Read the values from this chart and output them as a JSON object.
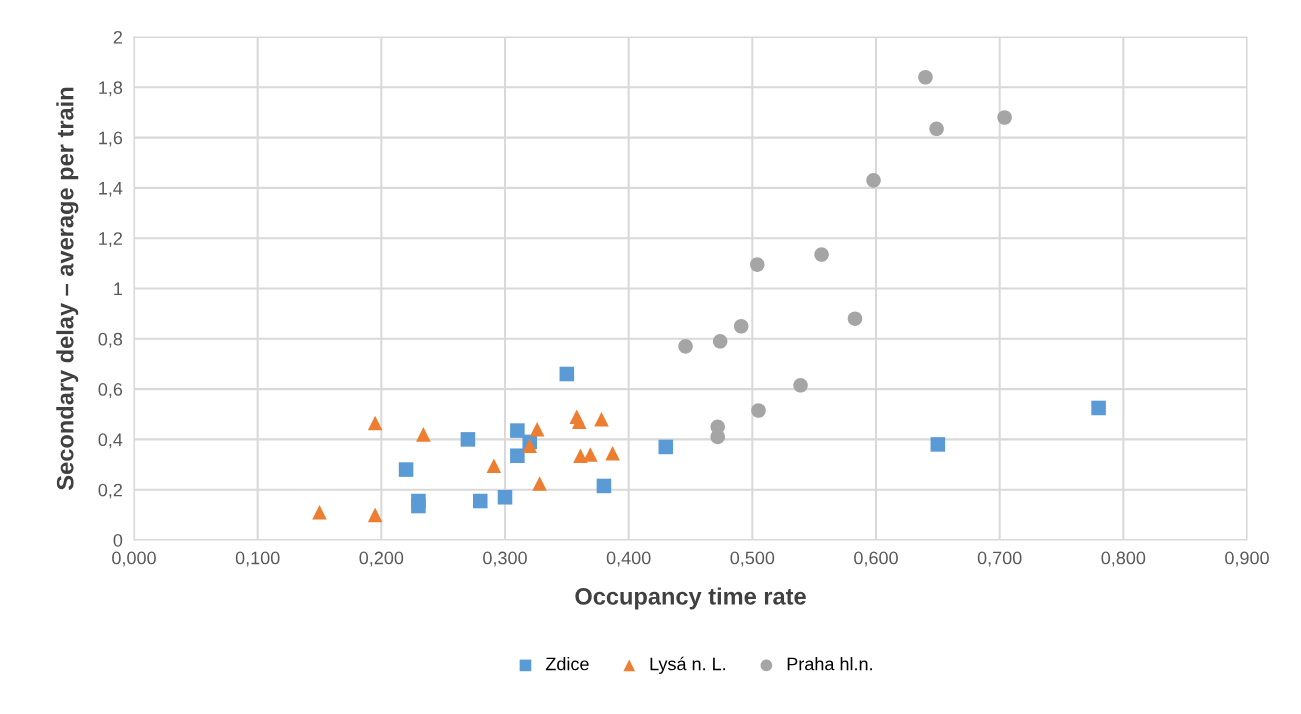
{
  "chart_data": {
    "type": "scatter",
    "xlabel": "Occupancy time rate",
    "ylabel": "Secondary delay – average per train",
    "xlim": [
      0,
      0.9
    ],
    "ylim": [
      0,
      2
    ],
    "xticks": [
      {
        "value": 0,
        "label": "0,000"
      },
      {
        "value": 0.1,
        "label": "0,100"
      },
      {
        "value": 0.2,
        "label": "0,200"
      },
      {
        "value": 0.3,
        "label": "0,300"
      },
      {
        "value": 0.4,
        "label": "0,400"
      },
      {
        "value": 0.5,
        "label": "0,500"
      },
      {
        "value": 0.6,
        "label": "0,600"
      },
      {
        "value": 0.7,
        "label": "0,700"
      },
      {
        "value": 0.8,
        "label": "0,800"
      },
      {
        "value": 0.9,
        "label": "0,900"
      }
    ],
    "yticks": [
      0,
      {
        "value": 0.2,
        "label": "0,2"
      },
      {
        "value": 0.4,
        "label": "0,4"
      },
      {
        "value": 0.6,
        "label": "0,6"
      },
      {
        "value": 0.8,
        "label": "0,8"
      },
      1,
      {
        "value": 1.2,
        "label": "1,2"
      },
      {
        "value": 1.4,
        "label": "1,4"
      },
      {
        "value": 1.6,
        "label": "1,6"
      },
      {
        "value": 1.8,
        "label": "1,8"
      },
      2
    ],
    "grid": true,
    "legend": "bottom",
    "series": [
      {
        "name": "Zdice",
        "color": "#5b9bd5",
        "marker": "square",
        "x": [
          0.22,
          0.23,
          0.23,
          0.27,
          0.28,
          0.3,
          0.31,
          0.31,
          0.32,
          0.35,
          0.38,
          0.43,
          0.65,
          0.78
        ],
        "values": [
          0.28,
          0.155,
          0.135,
          0.4,
          0.155,
          0.17,
          0.435,
          0.335,
          0.39,
          0.66,
          0.215,
          0.37,
          0.38,
          0.525
        ]
      },
      {
        "name": "Lysá n. L.",
        "color": "#ed7d31",
        "marker": "triangle",
        "x": [
          0.15,
          0.195,
          0.195,
          0.234,
          0.291,
          0.328,
          0.32,
          0.326,
          0.358,
          0.36,
          0.378,
          0.361,
          0.369,
          0.387
        ],
        "values": [
          0.11,
          0.1,
          0.465,
          0.42,
          0.295,
          0.225,
          0.375,
          0.44,
          0.49,
          0.47,
          0.48,
          0.335,
          0.34,
          0.345
        ]
      },
      {
        "name": "Praha hl.n.",
        "color": "#a5a5a5",
        "marker": "circle",
        "x": [
          0.446,
          0.474,
          0.491,
          0.504,
          0.556,
          0.583,
          0.598,
          0.64,
          0.649,
          0.704,
          0.539,
          0.505,
          0.472,
          0.472
        ],
        "values": [
          0.77,
          0.79,
          0.85,
          1.095,
          1.135,
          0.88,
          1.43,
          1.84,
          1.635,
          1.68,
          0.615,
          0.515,
          0.45,
          0.41
        ]
      }
    ]
  }
}
